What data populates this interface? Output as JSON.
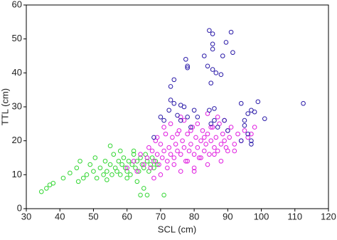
{
  "chart_data": {
    "type": "scatter",
    "xlabel": "SCL (cm)",
    "ylabel": "TTL (cm)",
    "xlim": [
      30,
      120
    ],
    "xticks": [
      30,
      40,
      50,
      60,
      70,
      80,
      90,
      100,
      110,
      120
    ],
    "ylim": [
      0,
      60
    ],
    "yticks": [
      0,
      10,
      20,
      30,
      40,
      50,
      60
    ],
    "series": [
      {
        "color": "#33d633",
        "x": [
          34.5,
          36,
          37,
          38,
          41,
          43,
          45,
          45.5,
          46,
          47,
          48,
          49,
          50,
          50.5,
          51,
          52,
          53,
          53.5,
          54,
          55,
          55.5,
          56,
          56.5,
          57,
          57.5,
          58,
          58.5,
          59,
          59.5,
          60,
          60.5,
          61,
          61.5,
          62,
          62.5,
          63,
          63.5,
          64,
          64.5,
          65,
          65.5,
          66,
          66.5,
          67,
          67.5,
          68,
          68.5,
          69,
          63,
          65,
          66,
          64,
          71,
          60,
          62,
          58,
          55,
          54
        ],
        "values": [
          5,
          6,
          7,
          7.5,
          9,
          10.5,
          12,
          8,
          14,
          9,
          10,
          13,
          11,
          15,
          9,
          12,
          10,
          14,
          11,
          13,
          10,
          16,
          12,
          11,
          14,
          10,
          13,
          15,
          12,
          11,
          14,
          10,
          13,
          16,
          12,
          14,
          11,
          15,
          13,
          12,
          16,
          14,
          11,
          13,
          15,
          12,
          14,
          13,
          8,
          6,
          4,
          4,
          4,
          9,
          17,
          17,
          18.5,
          8.5
        ]
      },
      {
        "color": "#e01ee0",
        "x": [
          60,
          62,
          63,
          64,
          65,
          66,
          66.5,
          67,
          67.5,
          68,
          68.5,
          69,
          69.5,
          70,
          70.5,
          71,
          71.5,
          72,
          72.5,
          73,
          73.5,
          74,
          74.5,
          75,
          75.5,
          76,
          76.5,
          77,
          77.5,
          78,
          78.5,
          79,
          79.5,
          80,
          80.5,
          81,
          81.5,
          82,
          82.5,
          83,
          83.5,
          84,
          84.5,
          85,
          85.5,
          86,
          86.5,
          87,
          87.5,
          88,
          88.5,
          89,
          89.5,
          90,
          90.5,
          91,
          92,
          93,
          94,
          95,
          96,
          97,
          98,
          70,
          72,
          74,
          76,
          78,
          80,
          82,
          84,
          86,
          88,
          90,
          71,
          73,
          75,
          77,
          79,
          81,
          83,
          85,
          87,
          89,
          69,
          68,
          92,
          80,
          76,
          84
        ],
        "values": [
          12,
          14,
          11,
          16,
          13,
          15,
          18,
          12,
          17,
          14,
          20,
          16,
          13,
          19,
          15,
          17,
          22,
          14,
          18,
          16,
          21,
          15,
          19,
          17,
          23,
          16,
          20,
          18,
          14,
          22,
          17,
          19,
          24,
          16,
          21,
          18,
          15,
          20,
          23,
          17,
          19,
          22,
          16,
          20,
          24,
          18,
          21,
          17,
          25,
          19,
          22,
          20,
          18,
          23,
          21,
          24,
          19,
          22,
          20,
          23,
          21,
          22,
          24,
          10,
          12,
          13,
          11,
          14,
          12,
          15,
          13,
          16,
          14,
          17,
          24,
          25,
          22,
          26,
          23,
          25,
          21,
          24,
          27,
          26,
          21,
          9,
          17,
          11,
          27,
          28
        ]
      },
      {
        "color": "#2a1aa8",
        "x": [
          84.5,
          85.5,
          91,
          85.5,
          85.5,
          89.5,
          88.5,
          91.5,
          83,
          77.5,
          78,
          78,
          84,
          85.5,
          86.5,
          88,
          85,
          74,
          73,
          73,
          74,
          76,
          77,
          72.5,
          75,
          80,
          78,
          81,
          84.5,
          86,
          94,
          96,
          97,
          98,
          99,
          95,
          101,
          112.5,
          86,
          89,
          85,
          87,
          90,
          95,
          96,
          97,
          97,
          94,
          71,
          70,
          76,
          79,
          68
        ],
        "values": [
          52.5,
          51.5,
          52,
          48.5,
          47,
          49,
          45,
          46,
          45,
          44,
          42,
          41.5,
          42,
          41,
          40,
          39.5,
          37,
          38,
          36,
          32,
          31,
          30.5,
          30,
          29,
          27.5,
          29,
          27,
          27,
          29,
          29.5,
          31,
          28,
          29,
          28.5,
          31.5,
          26,
          26.5,
          31,
          26,
          26,
          25,
          24,
          23,
          24.5,
          22,
          19,
          20,
          20,
          26,
          27,
          26,
          24,
          21
        ]
      }
    ]
  }
}
